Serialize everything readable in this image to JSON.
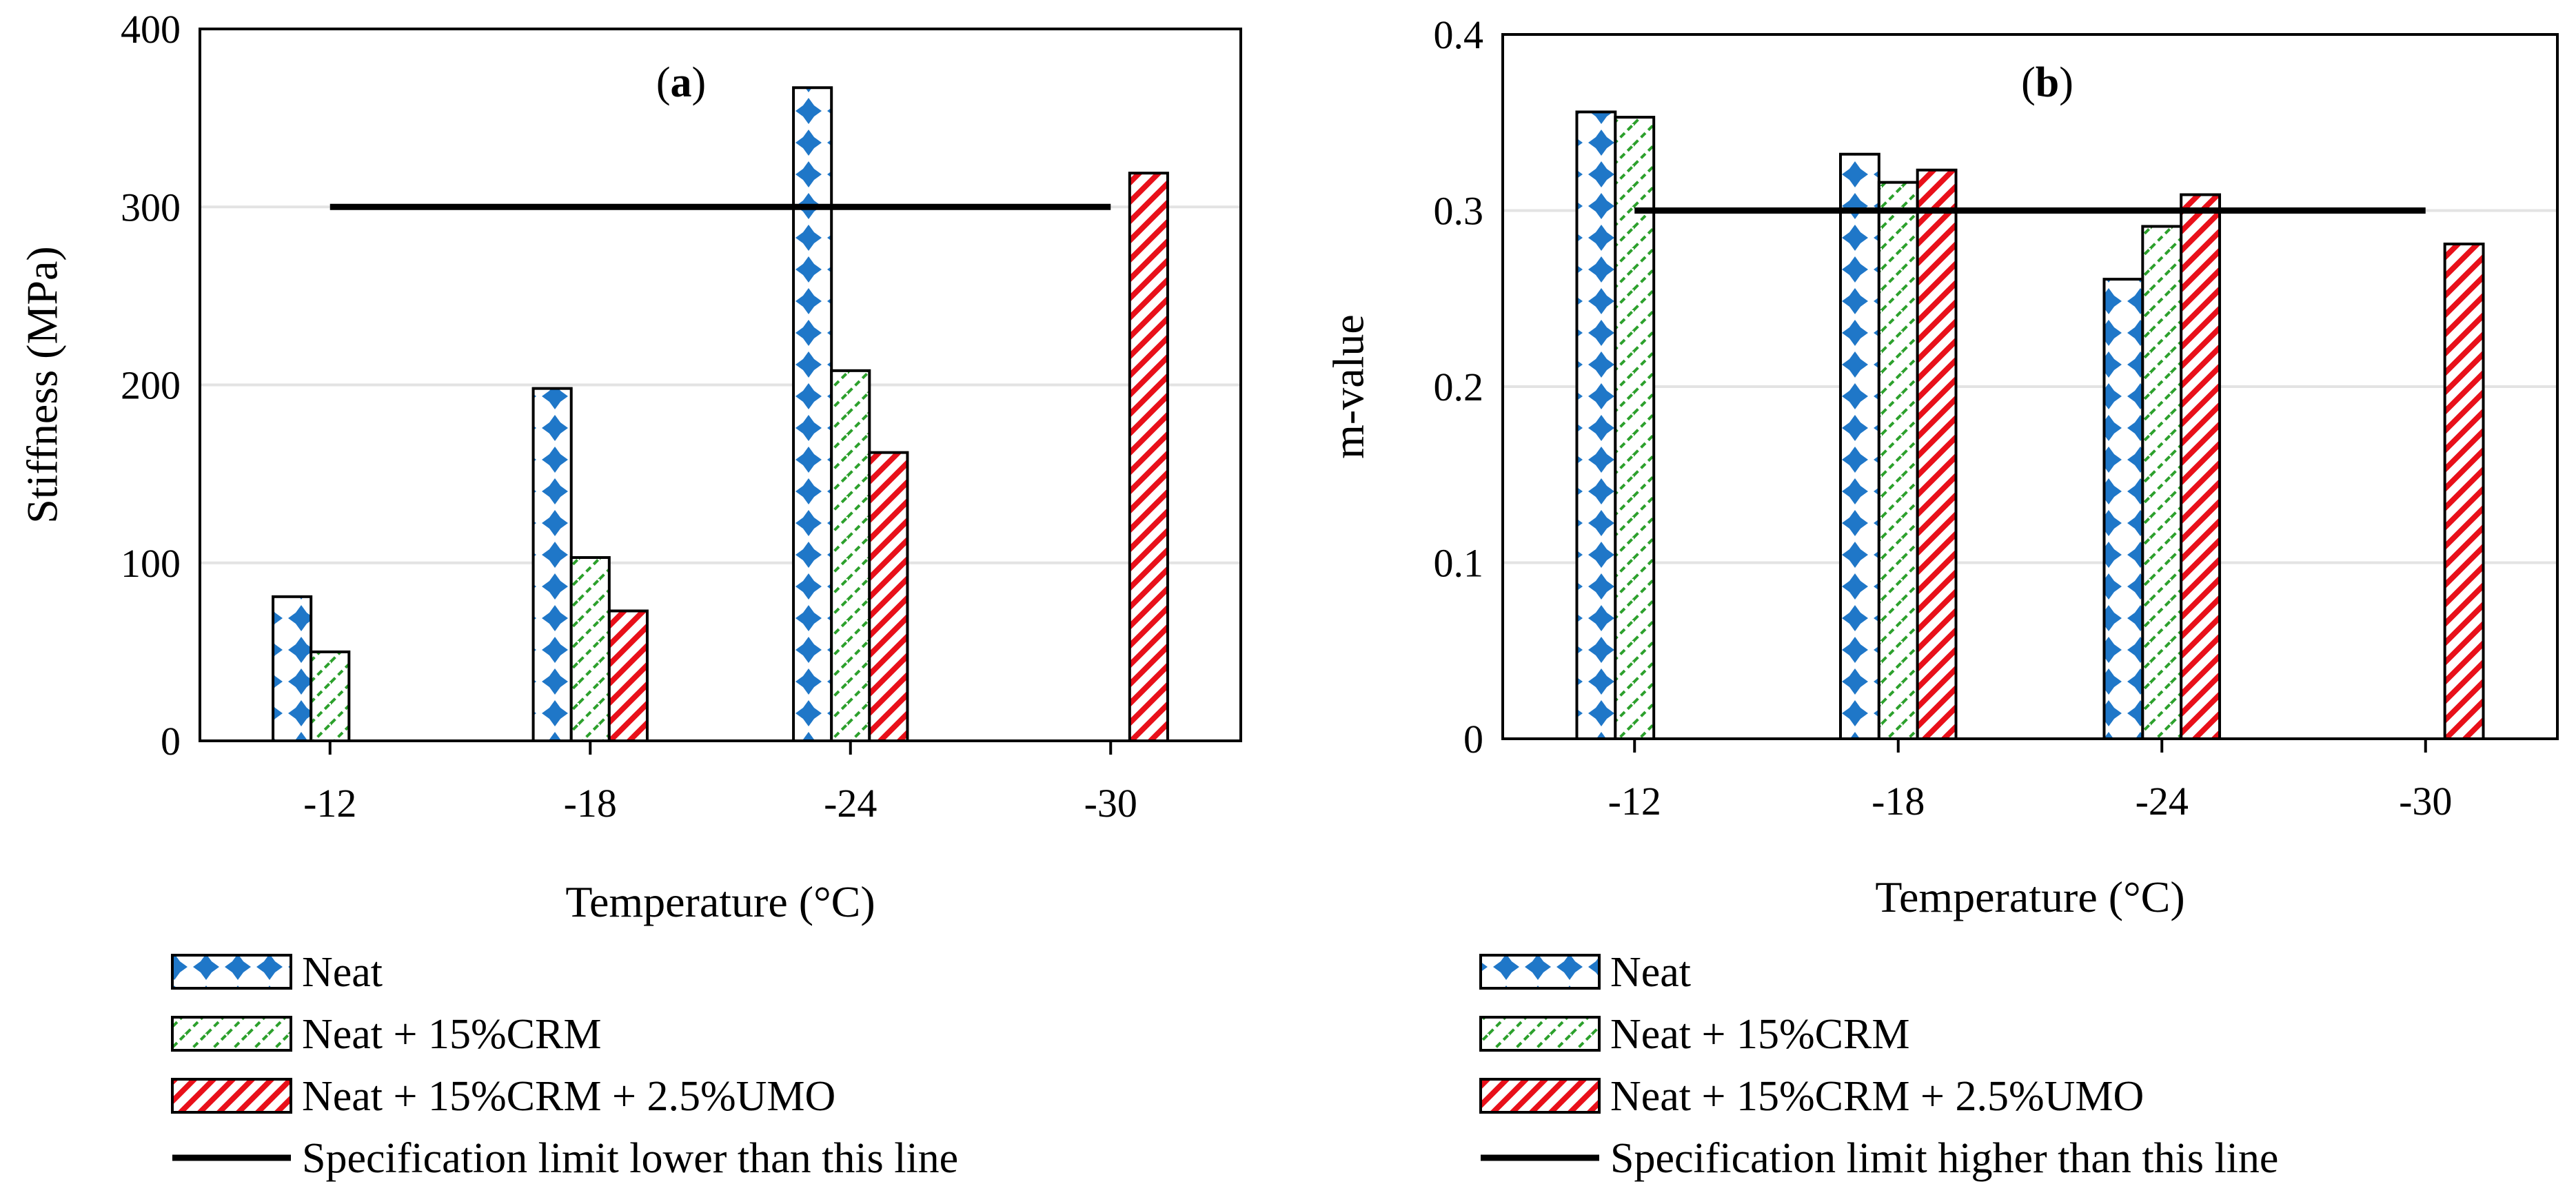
{
  "chart_data": [
    {
      "type": "bar",
      "panel_label_prefix": "(",
      "panel_label": "a",
      "panel_label_suffix": ")",
      "xlabel": "Temperature (°C)",
      "ylabel": "Stiffness (MPa)",
      "categories": [
        "-12",
        "-18",
        "-24",
        "-30"
      ],
      "ylim": [
        0,
        400
      ],
      "yticks": [
        0,
        100,
        200,
        300,
        400
      ],
      "grid": true,
      "legend_position": "bottom",
      "series": [
        {
          "name": "Neat",
          "values": [
            81,
            198,
            367,
            null
          ],
          "pattern": "neat",
          "color": "#1f77c8"
        },
        {
          "name": "Neat + 15%CRM",
          "values": [
            50,
            103,
            208,
            null
          ],
          "pattern": "crm",
          "color": "#2ca02c"
        },
        {
          "name": "Neat + 15%CRM + 2.5%UMO",
          "values": [
            null,
            73,
            162,
            319
          ],
          "pattern": "umo",
          "color": "#e8101a"
        }
      ],
      "limit_line": {
        "name": "Specification limit lower than this line",
        "value": 300,
        "x_from": "-12",
        "x_to": "-30",
        "color": "#000000"
      }
    },
    {
      "type": "bar",
      "panel_label_prefix": "(",
      "panel_label": "b",
      "panel_label_suffix": ")",
      "xlabel": "Temperature (°C)",
      "ylabel": "m-value",
      "categories": [
        "-12",
        "-18",
        "-24",
        "-30"
      ],
      "ylim": [
        0,
        0.4
      ],
      "yticks": [
        0,
        0.1,
        0.2,
        0.3,
        0.4
      ],
      "grid": true,
      "legend_position": "bottom",
      "series": [
        {
          "name": "Neat",
          "values": [
            0.356,
            0.332,
            0.261,
            null
          ],
          "pattern": "neat",
          "color": "#1f77c8"
        },
        {
          "name": "Neat + 15%CRM",
          "values": [
            0.353,
            0.316,
            0.291,
            null
          ],
          "pattern": "crm",
          "color": "#2ca02c"
        },
        {
          "name": "Neat + 15%CRM + 2.5%UMO",
          "values": [
            null,
            0.323,
            0.309,
            0.281
          ],
          "pattern": "umo",
          "color": "#e8101a"
        }
      ],
      "limit_line": {
        "name": "Specification limit higher than this line",
        "value": 0.3,
        "x_from": "-12",
        "x_to": "-30",
        "color": "#000000"
      }
    }
  ]
}
